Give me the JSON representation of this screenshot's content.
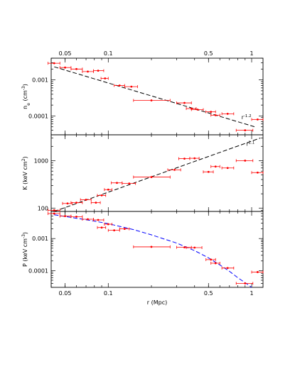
{
  "chart_data": [
    {
      "type": "scatter",
      "panel": "density",
      "ylabel": "n_e (cm^-3)",
      "ylabel_main": "n",
      "ylabel_sub": "e",
      "ylabel_unit": "(cm",
      "ylabel_exp": "-3",
      "ylabel_close": ")",
      "xscale": "log",
      "yscale": "log",
      "xlim": [
        0.04,
        1.2
      ],
      "ylim": [
        3e-05,
        0.004
      ],
      "yticks": [
        0.001,
        0.0001
      ],
      "yticklabels": [
        "0.001",
        "0.0001"
      ],
      "top_xticks": [
        0.05,
        0.1,
        0.5,
        1
      ],
      "top_xticklabels": [
        "0.05",
        "0.1",
        "0.5",
        "1"
      ],
      "annotation": {
        "base": "r",
        "exp": "-1.2",
        "at": [
          0.92,
          8.2e-05
        ]
      },
      "color": "#ff0000",
      "fit_color": "#000000",
      "points": [
        {
          "x": 0.042,
          "y": 0.0029,
          "xlo": 0.038,
          "xhi": 0.046
        },
        {
          "x": 0.05,
          "y": 0.0022,
          "xlo": 0.046,
          "xhi": 0.055
        },
        {
          "x": 0.06,
          "y": 0.002,
          "xlo": 0.055,
          "xhi": 0.066
        },
        {
          "x": 0.072,
          "y": 0.0017,
          "xlo": 0.066,
          "xhi": 0.079
        },
        {
          "x": 0.085,
          "y": 0.0018,
          "xlo": 0.079,
          "xhi": 0.093
        },
        {
          "x": 0.095,
          "y": 0.0011,
          "xlo": 0.089,
          "xhi": 0.1
        },
        {
          "x": 0.12,
          "y": 0.0007,
          "xlo": 0.11,
          "xhi": 0.13
        },
        {
          "x": 0.145,
          "y": 0.00065,
          "xlo": 0.13,
          "xhi": 0.16
        },
        {
          "x": 0.2,
          "y": 0.00027,
          "xlo": 0.15,
          "xhi": 0.27
        },
        {
          "x": 0.34,
          "y": 0.00023,
          "xlo": 0.3,
          "xhi": 0.38
        },
        {
          "x": 0.38,
          "y": 0.00016,
          "xlo": 0.35,
          "xhi": 0.41
        },
        {
          "x": 0.42,
          "y": 0.00015,
          "xlo": 0.38,
          "xhi": 0.46
        },
        {
          "x": 0.52,
          "y": 0.00013,
          "xlo": 0.48,
          "xhi": 0.56
        },
        {
          "x": 0.56,
          "y": 0.000105,
          "xlo": 0.52,
          "xhi": 0.6
        },
        {
          "x": 0.68,
          "y": 0.000115,
          "xlo": 0.62,
          "xhi": 0.75
        },
        {
          "x": 0.9,
          "y": 4e-05,
          "xlo": 0.78,
          "xhi": 1.02
        },
        {
          "x": 1.1,
          "y": 8e-05,
          "xlo": 1.0,
          "xhi": 1.2
        }
      ],
      "fit": {
        "style": "dashed",
        "x": [
          0.042,
          1.05
        ],
        "y": [
          0.0023,
          5e-05
        ]
      }
    },
    {
      "type": "scatter",
      "panel": "entropy",
      "ylabel": "K (keV cm^2)",
      "ylabel_main": "K (keV cm",
      "ylabel_exp": "2",
      "ylabel_close": ")",
      "xscale": "log",
      "yscale": "log",
      "xlim": [
        0.04,
        1.2
      ],
      "ylim": [
        85,
        3500
      ],
      "yticks": [
        1000,
        100
      ],
      "yticklabels": [
        "1000",
        "100"
      ],
      "annotation": {
        "base": "r",
        "exp": "1.1",
        "at": [
          0.98,
          2050
        ]
      },
      "color": "#ff0000",
      "fit_color": "#000000",
      "points": [
        {
          "x": 0.042,
          "y": 90,
          "xlo": 0.038,
          "xhi": 0.046
        },
        {
          "x": 0.052,
          "y": 125,
          "xlo": 0.048,
          "xhi": 0.056
        },
        {
          "x": 0.06,
          "y": 130,
          "xlo": 0.055,
          "xhi": 0.066
        },
        {
          "x": 0.07,
          "y": 150,
          "xlo": 0.064,
          "xhi": 0.076
        },
        {
          "x": 0.082,
          "y": 130,
          "xlo": 0.076,
          "xhi": 0.088
        },
        {
          "x": 0.09,
          "y": 185,
          "xlo": 0.084,
          "xhi": 0.096
        },
        {
          "x": 0.1,
          "y": 245,
          "xlo": 0.094,
          "xhi": 0.106
        },
        {
          "x": 0.115,
          "y": 340,
          "xlo": 0.105,
          "xhi": 0.125
        },
        {
          "x": 0.14,
          "y": 330,
          "xlo": 0.125,
          "xhi": 0.155
        },
        {
          "x": 0.2,
          "y": 450,
          "xlo": 0.15,
          "xhi": 0.27
        },
        {
          "x": 0.29,
          "y": 640,
          "xlo": 0.26,
          "xhi": 0.32
        },
        {
          "x": 0.34,
          "y": 1100,
          "xlo": 0.31,
          "xhi": 0.37
        },
        {
          "x": 0.4,
          "y": 1120,
          "xlo": 0.37,
          "xhi": 0.43
        },
        {
          "x": 0.5,
          "y": 580,
          "xlo": 0.46,
          "xhi": 0.54
        },
        {
          "x": 0.56,
          "y": 750,
          "xlo": 0.52,
          "xhi": 0.6
        },
        {
          "x": 0.68,
          "y": 700,
          "xlo": 0.62,
          "xhi": 0.75
        },
        {
          "x": 0.9,
          "y": 1000,
          "xlo": 0.78,
          "xhi": 1.02
        },
        {
          "x": 1.1,
          "y": 560,
          "xlo": 1.0,
          "xhi": 1.2
        }
      ],
      "fit": {
        "style": "dashed",
        "x": [
          0.042,
          1.15
        ],
        "y": [
          85,
          3000
        ]
      }
    },
    {
      "type": "scatter",
      "panel": "pressure",
      "ylabel": "P (keV cm^-3)",
      "ylabel_main": "P (keV cm",
      "ylabel_exp": "-3",
      "ylabel_close": ")",
      "xlabel": "r (Mpc)",
      "xscale": "log",
      "yscale": "log",
      "xlim": [
        0.04,
        1.2
      ],
      "ylim": [
        3e-05,
        0.007
      ],
      "xticks": [
        0.05,
        0.1,
        0.5,
        1
      ],
      "xticklabels": [
        "0.05",
        "0.1",
        "0.5",
        "1"
      ],
      "yticks": [
        0.001,
        0.0001
      ],
      "yticklabels": [
        "0.001",
        "0.0001"
      ],
      "color": "#ff0000",
      "fit_color": "#0000ff",
      "points": [
        {
          "x": 0.042,
          "y": 0.006,
          "xlo": 0.038,
          "xhi": 0.046
        },
        {
          "x": 0.05,
          "y": 0.005,
          "xlo": 0.046,
          "xhi": 0.055
        },
        {
          "x": 0.06,
          "y": 0.0048,
          "xlo": 0.055,
          "xhi": 0.066
        },
        {
          "x": 0.072,
          "y": 0.004,
          "xlo": 0.066,
          "xhi": 0.079
        },
        {
          "x": 0.085,
          "y": 0.0038,
          "xlo": 0.079,
          "xhi": 0.093
        },
        {
          "x": 0.09,
          "y": 0.0022,
          "xlo": 0.084,
          "xhi": 0.096
        },
        {
          "x": 0.1,
          "y": 0.0028,
          "xlo": 0.094,
          "xhi": 0.106
        },
        {
          "x": 0.11,
          "y": 0.0018,
          "xlo": 0.1,
          "xhi": 0.12
        },
        {
          "x": 0.13,
          "y": 0.002,
          "xlo": 0.12,
          "xhi": 0.14
        },
        {
          "x": 0.2,
          "y": 0.00055,
          "xlo": 0.15,
          "xhi": 0.27
        },
        {
          "x": 0.34,
          "y": 0.00053,
          "xlo": 0.3,
          "xhi": 0.38
        },
        {
          "x": 0.4,
          "y": 0.00052,
          "xlo": 0.35,
          "xhi": 0.45
        },
        {
          "x": 0.52,
          "y": 0.00022,
          "xlo": 0.48,
          "xhi": 0.56
        },
        {
          "x": 0.56,
          "y": 0.00017,
          "xlo": 0.52,
          "xhi": 0.6
        },
        {
          "x": 0.68,
          "y": 0.00012,
          "xlo": 0.62,
          "xhi": 0.75
        },
        {
          "x": 0.9,
          "y": 4e-05,
          "xlo": 0.78,
          "xhi": 1.02
        },
        {
          "x": 1.1,
          "y": 9e-05,
          "xlo": 1.0,
          "xhi": 1.2
        }
      ],
      "fit": {
        "style": "dashed",
        "x": [
          0.042,
          0.06,
          0.08,
          0.1,
          0.15,
          0.2,
          0.3,
          0.4,
          0.5,
          0.6,
          0.7,
          0.8,
          0.9,
          1.0
        ],
        "y": [
          0.0055,
          0.0043,
          0.0035,
          0.0029,
          0.0019,
          0.0013,
          0.00072,
          0.00042,
          0.00025,
          0.00015,
          9.5e-05,
          6e-05,
          4.2e-05,
          3e-05
        ]
      }
    }
  ]
}
